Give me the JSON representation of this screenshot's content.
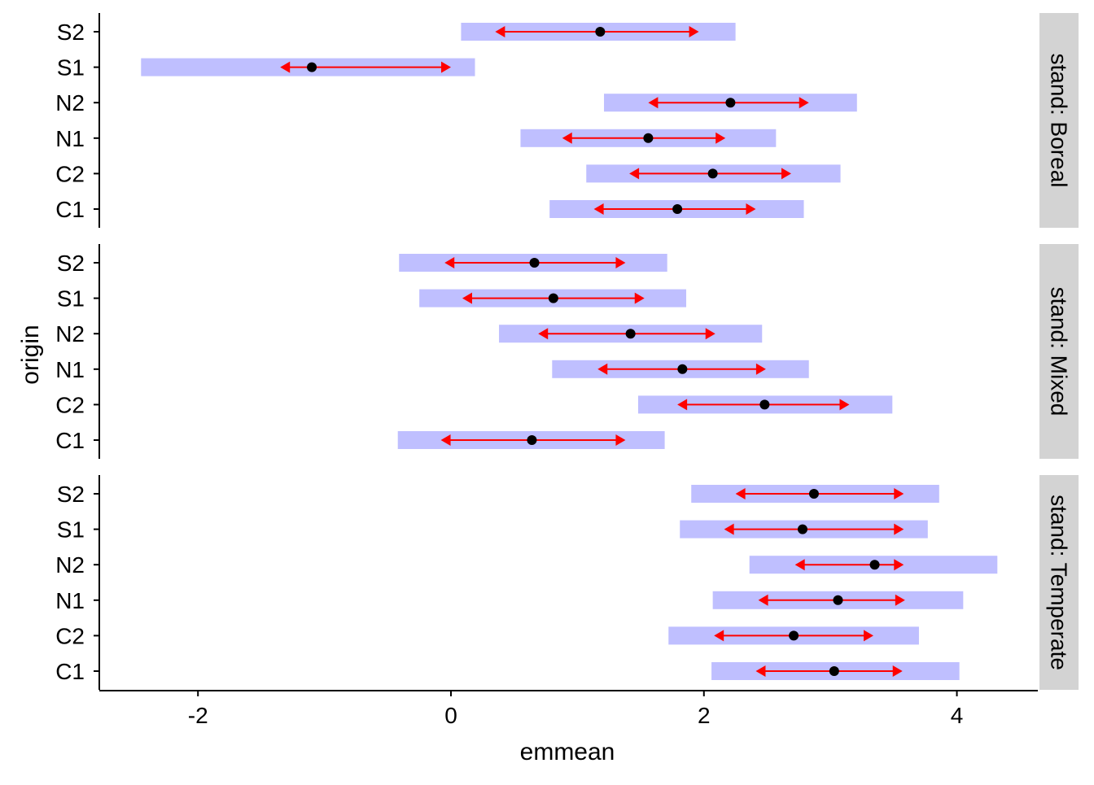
{
  "chart_data": {
    "type": "interval",
    "xlabel": "emmean",
    "ylabel": "origin",
    "xlim": [
      -2.78,
      4.64
    ],
    "x_ticks": [
      -2,
      0,
      2,
      4
    ],
    "categories": [
      "C1",
      "C2",
      "N1",
      "N2",
      "S1",
      "S2"
    ],
    "facet_label_prefix": "stand: ",
    "colors": {
      "ci_band": "#bfbfff",
      "comparison_arrow": "#ff0000",
      "point": "#000000",
      "strip": "#d3d3d3"
    },
    "panels": [
      {
        "facet": "Boreal",
        "rows": [
          {
            "origin": "C1",
            "emmean": 1.79,
            "lower_CL": 0.78,
            "upper_CL": 2.79,
            "arrow_left": 1.13,
            "arrow_right": 2.41
          },
          {
            "origin": "C2",
            "emmean": 2.07,
            "lower_CL": 1.07,
            "upper_CL": 3.08,
            "arrow_left": 1.41,
            "arrow_right": 2.69
          },
          {
            "origin": "N1",
            "emmean": 1.56,
            "lower_CL": 0.55,
            "upper_CL": 2.57,
            "arrow_left": 0.88,
            "arrow_right": 2.17
          },
          {
            "origin": "N2",
            "emmean": 2.21,
            "lower_CL": 1.21,
            "upper_CL": 3.21,
            "arrow_left": 1.56,
            "arrow_right": 2.83
          },
          {
            "origin": "S1",
            "emmean": -1.1,
            "lower_CL": -2.45,
            "upper_CL": 0.19,
            "arrow_left": -1.35,
            "arrow_right": 0.0
          },
          {
            "origin": "S2",
            "emmean": 1.18,
            "lower_CL": 0.08,
            "upper_CL": 2.25,
            "arrow_left": 0.35,
            "arrow_right": 1.96
          }
        ]
      },
      {
        "facet": "Mixed",
        "rows": [
          {
            "origin": "C1",
            "emmean": 0.64,
            "lower_CL": -0.42,
            "upper_CL": 1.69,
            "arrow_left": -0.08,
            "arrow_right": 1.38
          },
          {
            "origin": "C2",
            "emmean": 2.48,
            "lower_CL": 1.48,
            "upper_CL": 3.49,
            "arrow_left": 1.79,
            "arrow_right": 3.15
          },
          {
            "origin": "N1",
            "emmean": 1.83,
            "lower_CL": 0.8,
            "upper_CL": 2.83,
            "arrow_left": 1.16,
            "arrow_right": 2.49
          },
          {
            "origin": "N2",
            "emmean": 1.42,
            "lower_CL": 0.38,
            "upper_CL": 2.46,
            "arrow_left": 0.69,
            "arrow_right": 2.09
          },
          {
            "origin": "S1",
            "emmean": 0.81,
            "lower_CL": -0.25,
            "upper_CL": 1.86,
            "arrow_left": 0.09,
            "arrow_right": 1.53
          },
          {
            "origin": "S2",
            "emmean": 0.66,
            "lower_CL": -0.41,
            "upper_CL": 1.71,
            "arrow_left": -0.05,
            "arrow_right": 1.38
          }
        ]
      },
      {
        "facet": "Temperate",
        "rows": [
          {
            "origin": "C1",
            "emmean": 3.03,
            "lower_CL": 2.06,
            "upper_CL": 4.02,
            "arrow_left": 2.41,
            "arrow_right": 3.57
          },
          {
            "origin": "C2",
            "emmean": 2.71,
            "lower_CL": 1.72,
            "upper_CL": 3.7,
            "arrow_left": 2.08,
            "arrow_right": 3.34
          },
          {
            "origin": "N1",
            "emmean": 3.06,
            "lower_CL": 2.07,
            "upper_CL": 4.05,
            "arrow_left": 2.43,
            "arrow_right": 3.59
          },
          {
            "origin": "N2",
            "emmean": 3.35,
            "lower_CL": 2.36,
            "upper_CL": 4.32,
            "arrow_left": 2.72,
            "arrow_right": 3.58
          },
          {
            "origin": "S1",
            "emmean": 2.78,
            "lower_CL": 1.81,
            "upper_CL": 3.77,
            "arrow_left": 2.16,
            "arrow_right": 3.58
          },
          {
            "origin": "S2",
            "emmean": 2.87,
            "lower_CL": 1.9,
            "upper_CL": 3.86,
            "arrow_left": 2.25,
            "arrow_right": 3.58
          }
        ]
      }
    ]
  }
}
